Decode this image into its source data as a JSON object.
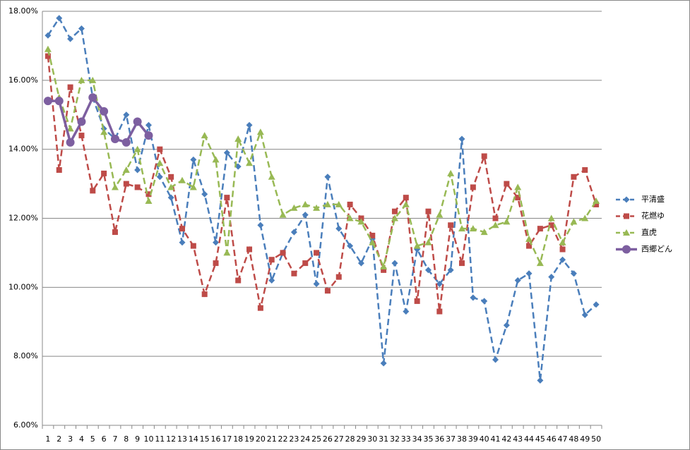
{
  "chart_data": {
    "type": "line",
    "categories": [
      "1",
      "2",
      "3",
      "4",
      "5",
      "6",
      "7",
      "8",
      "9",
      "10",
      "11",
      "12",
      "13",
      "14",
      "15",
      "16",
      "17",
      "18",
      "19",
      "20",
      "21",
      "22",
      "23",
      "24",
      "25",
      "26",
      "27",
      "28",
      "29",
      "30",
      "31",
      "32",
      "33",
      "34",
      "35",
      "36",
      "37",
      "38",
      "39",
      "40",
      "41",
      "42",
      "43",
      "44",
      "45",
      "46",
      "47",
      "48",
      "49",
      "50"
    ],
    "series": [
      {
        "name": "平清盛",
        "color": "#4a7ebb",
        "marker": "diamond",
        "dash": true,
        "values": [
          17.3,
          17.8,
          17.2,
          17.5,
          15.5,
          14.6,
          14.3,
          15.0,
          13.4,
          14.7,
          13.2,
          12.6,
          11.3,
          13.7,
          12.7,
          11.3,
          13.9,
          13.5,
          14.7,
          11.8,
          10.2,
          11.0,
          11.6,
          12.1,
          10.1,
          13.2,
          11.7,
          11.2,
          10.7,
          11.4,
          7.8,
          10.7,
          9.3,
          11.1,
          10.5,
          10.1,
          10.5,
          14.3,
          9.7,
          9.6,
          7.9,
          8.9,
          10.2,
          10.4,
          7.3,
          10.3,
          10.8,
          10.4,
          9.2,
          9.5
        ]
      },
      {
        "name": "花燃ゆ",
        "color": "#be4b48",
        "marker": "square",
        "dash": true,
        "values": [
          16.7,
          13.4,
          15.8,
          14.4,
          12.8,
          13.3,
          11.6,
          13.0,
          12.9,
          12.7,
          14.0,
          13.2,
          11.7,
          11.2,
          9.8,
          10.7,
          12.6,
          10.2,
          11.1,
          9.4,
          10.8,
          11.0,
          10.4,
          10.7,
          11.0,
          9.9,
          10.3,
          12.4,
          12.0,
          11.5,
          10.5,
          12.2,
          12.6,
          9.6,
          12.2,
          9.3,
          11.8,
          10.7,
          12.9,
          13.8,
          12.0,
          13.0,
          12.6,
          11.2,
          11.7,
          11.8,
          11.1,
          13.2,
          13.4,
          12.4
        ]
      },
      {
        "name": "直虎",
        "color": "#98b954",
        "marker": "triangle",
        "dash": true,
        "values": [
          16.9,
          15.5,
          14.6,
          16.0,
          16.0,
          14.5,
          12.9,
          13.4,
          14.0,
          12.5,
          13.6,
          12.9,
          13.1,
          12.9,
          14.4,
          13.7,
          11.0,
          14.3,
          13.6,
          14.5,
          13.2,
          12.1,
          12.3,
          12.4,
          12.3,
          12.4,
          12.4,
          12.0,
          11.9,
          11.3,
          10.6,
          12.0,
          12.4,
          11.2,
          11.3,
          12.1,
          13.3,
          11.7,
          11.7,
          11.6,
          11.8,
          11.9,
          12.9,
          11.4,
          10.7,
          12.0,
          11.3,
          11.9,
          12.0,
          12.5
        ]
      },
      {
        "name": "西郷どん",
        "color": "#7d5fa0",
        "marker": "circle",
        "dash": false,
        "values": [
          15.4,
          15.4,
          14.2,
          14.8,
          15.5,
          15.1,
          14.3,
          14.2,
          14.8,
          14.4,
          null,
          null,
          null,
          null,
          null,
          null,
          null,
          null,
          null,
          null,
          null,
          null,
          null,
          null,
          null,
          null,
          null,
          null,
          null,
          null,
          null,
          null,
          null,
          null,
          null,
          null,
          null,
          null,
          null,
          null,
          null,
          null,
          null,
          null,
          null,
          null,
          null,
          null,
          null,
          null
        ]
      }
    ],
    "ylim": [
      6,
      18
    ],
    "yticks": [
      {
        "value": 6,
        "label": "6.00%"
      },
      {
        "value": 8,
        "label": "8.00%"
      },
      {
        "value": 10,
        "label": "10.00%"
      },
      {
        "value": 12,
        "label": "12.00%"
      },
      {
        "value": 14,
        "label": "14.00%"
      },
      {
        "value": 16,
        "label": "16.00%"
      },
      {
        "value": 18,
        "label": "18.00%"
      }
    ],
    "grid": true,
    "legend": "right"
  }
}
